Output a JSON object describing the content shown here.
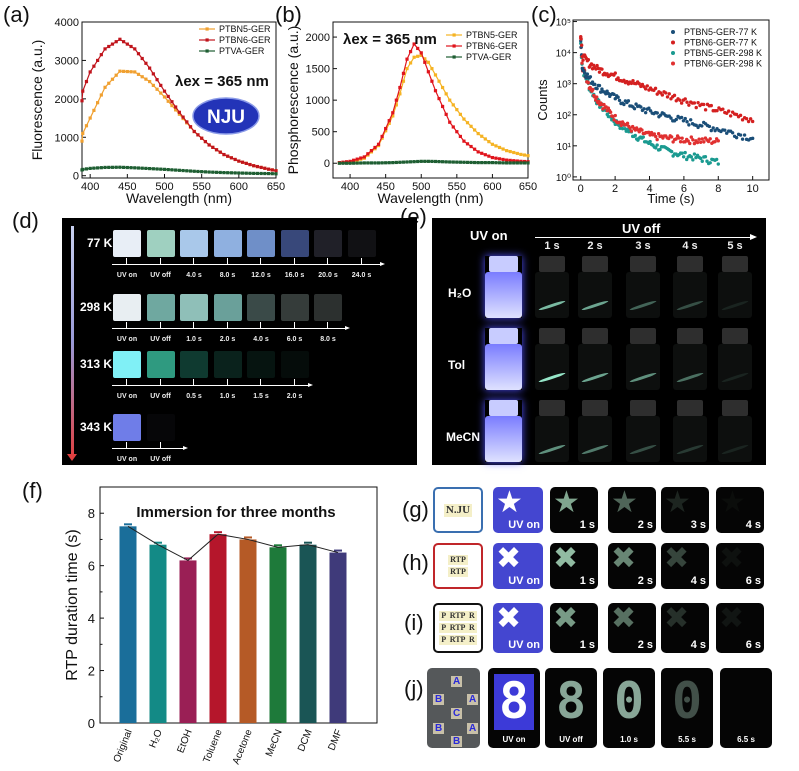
{
  "panel_labels": {
    "a": "(a)",
    "b": "(b)",
    "c": "(c)",
    "d": "(d)",
    "e": "(e)",
    "f": "(f)",
    "g": "(g)",
    "h": "(h)",
    "i": "(i)",
    "j": "(j)"
  },
  "chart_data": [
    {
      "id": "a",
      "type": "line",
      "title": "",
      "xlabel": "Wavelength (nm)",
      "ylabel": "Fluorescence (a.u.)",
      "xlim": [
        389,
        650
      ],
      "ylim": [
        -60,
        4000
      ],
      "xticks": [
        400,
        450,
        500,
        550,
        600,
        650
      ],
      "yticks": [
        0,
        1000,
        2000,
        3000,
        4000
      ],
      "annotation": "λex = 365 nm",
      "logo": "NJU",
      "legend_position": "top-right",
      "x": [
        385,
        400,
        420,
        440,
        460,
        480,
        500,
        520,
        540,
        560,
        580,
        600,
        620,
        640,
        650
      ],
      "series": [
        {
          "name": "PTBN5-GER",
          "color": "#f0a030",
          "values": [
            900,
            1500,
            2300,
            2720,
            2700,
            2450,
            2050,
            1600,
            1150,
            800,
            550,
            380,
            260,
            170,
            130
          ]
        },
        {
          "name": "PTBN6-GER",
          "color": "#c0141c",
          "values": [
            1950,
            2700,
            3300,
            3550,
            3300,
            2800,
            2200,
            1650,
            1150,
            800,
            550,
            380,
            260,
            170,
            130
          ]
        },
        {
          "name": "PTVA-GER",
          "color": "#1e5e32",
          "values": [
            150,
            190,
            215,
            220,
            205,
            185,
            165,
            140,
            115,
            95,
            80,
            70,
            60,
            55,
            50
          ]
        }
      ]
    },
    {
      "id": "b",
      "type": "line",
      "title": "",
      "xlabel": "Wavelength (nm)",
      "ylabel": "Phosphorescence (a.u.)",
      "xlim": [
        376,
        650
      ],
      "ylim": [
        -234,
        2239
      ],
      "xticks": [
        400,
        450,
        500,
        550,
        600,
        650
      ],
      "yticks": [
        0,
        500,
        1000,
        1500,
        2000
      ],
      "annotation": "λex = 365 nm",
      "legend_position": "top-right",
      "x": [
        385,
        400,
        420,
        440,
        460,
        470,
        480,
        490,
        500,
        510,
        520,
        540,
        560,
        580,
        600,
        620,
        640,
        650
      ],
      "series": [
        {
          "name": "PTBN5-GER",
          "color": "#f5b323",
          "values": [
            5,
            20,
            80,
            280,
            750,
            1100,
            1500,
            1680,
            1710,
            1600,
            1400,
            1000,
            700,
            470,
            300,
            200,
            140,
            120
          ]
        },
        {
          "name": "PTBN6-GER",
          "color": "#e0141c",
          "values": [
            10,
            30,
            100,
            300,
            800,
            1200,
            1650,
            1890,
            1750,
            1450,
            1150,
            650,
            350,
            180,
            90,
            50,
            30,
            25
          ]
        },
        {
          "name": "PTVA-GER",
          "color": "#1e5e32",
          "values": [
            0,
            0,
            5,
            5,
            10,
            15,
            20,
            25,
            30,
            30,
            28,
            20,
            15,
            10,
            10,
            5,
            5,
            5
          ]
        }
      ]
    },
    {
      "id": "c",
      "type": "scatter",
      "title": "",
      "xlabel": "Time (s)",
      "ylabel": "Counts",
      "yscale": "log",
      "xlim": [
        -0.45,
        10.95
      ],
      "ylim_log10": [
        -0.1,
        5.05
      ],
      "xticks": [
        0,
        2,
        4,
        6,
        8,
        10
      ],
      "yticks": [
        "10⁰",
        "10¹",
        "10²",
        "10³",
        "10⁴",
        "10⁵"
      ],
      "legend_position": "top-right",
      "series": [
        {
          "name": "PTBN5-GER-77 K",
          "color": "#1a4e78",
          "x": [
            0,
            0.1,
            0.5,
            1,
            2,
            3,
            4,
            5,
            6,
            7,
            8,
            9,
            10
          ],
          "values": [
            30000,
            3000,
            1500,
            800,
            350,
            200,
            130,
            90,
            65,
            48,
            35,
            25,
            18
          ]
        },
        {
          "name": "PTBN6-GER-77 K",
          "color": "#d42020",
          "x": [
            0,
            0.1,
            0.5,
            1,
            2,
            3,
            4,
            5,
            6,
            7,
            8,
            9,
            10
          ],
          "values": [
            30000,
            8000,
            4500,
            3000,
            1800,
            1100,
            700,
            450,
            300,
            200,
            140,
            100,
            70
          ]
        },
        {
          "name": "PTBN5-GER-298 K",
          "color": "#1a9a90",
          "x": [
            0,
            0.1,
            0.5,
            1,
            2,
            3,
            4,
            5,
            6,
            7,
            8
          ],
          "values": [
            20000,
            3000,
            800,
            250,
            60,
            25,
            12,
            7,
            5,
            4,
            3
          ]
        },
        {
          "name": "PTBN6-GER-298 K",
          "color": "#e03030",
          "x": [
            0,
            0.1,
            0.5,
            1,
            2,
            3,
            4,
            5,
            6,
            7,
            8
          ],
          "values": [
            25000,
            3500,
            900,
            300,
            80,
            35,
            22,
            18,
            16,
            15,
            14
          ]
        }
      ]
    },
    {
      "id": "f",
      "type": "bar",
      "title": "Immersion for three months",
      "xlabel": "",
      "ylabel": "RTP duration time (s)",
      "ylim": [
        0,
        9
      ],
      "yticks": [
        0,
        2,
        4,
        6,
        8
      ],
      "categories": [
        "Original",
        "H₂O",
        "EtOH",
        "Toluene",
        "Acetone",
        "MeCN",
        "DCM",
        "DMF"
      ],
      "values": [
        7.5,
        6.8,
        6.2,
        7.2,
        7.0,
        6.7,
        6.8,
        6.5
      ],
      "colors": [
        "#1a6e9a",
        "#138a86",
        "#9a1f55",
        "#b5162b",
        "#b55a26",
        "#1e7a3a",
        "#1a5555",
        "#3f3a7a"
      ]
    }
  ],
  "panel_d": {
    "rows": [
      {
        "temp": "77 K",
        "labels": [
          "UV on",
          "UV off",
          "4.0 s",
          "8.0 s",
          "12.0 s",
          "16.0 s",
          "20.0 s",
          "24.0 s"
        ],
        "colors": [
          "#e8eef6",
          "#9fd0c0",
          "#a9c8ea",
          "#8fb0e0",
          "#6f8fc8",
          "#38487a",
          "#202028",
          "#111114"
        ]
      },
      {
        "temp": "298 K",
        "labels": [
          "UV on",
          "UV off",
          "1.0 s",
          "2.0 s",
          "4.0 s",
          "6.0 s",
          "8.0 s"
        ],
        "colors": [
          "#e8eef2",
          "#6fa8a0",
          "#8fbfb8",
          "#6aa09a",
          "#3a4a48",
          "#353c3a",
          "#2c302f"
        ]
      },
      {
        "temp": "313 K",
        "labels": [
          "UV on",
          "UV off",
          "0.5 s",
          "1.0 s",
          "1.5 s",
          "2.0 s"
        ],
        "colors": [
          "#80f0f6",
          "#2f9a80",
          "#0f3a30",
          "#0a221c",
          "#061410",
          "#050c0a"
        ]
      },
      {
        "temp": "343 K",
        "labels": [
          "UV on",
          "UV off"
        ],
        "colors": [
          "#6f7de8",
          "#060608"
        ]
      }
    ]
  },
  "panel_e": {
    "uv_on": "UV on",
    "uv_off": "UV off",
    "times": [
      "1 s",
      "2 s",
      "3 s",
      "4 s",
      "5 s"
    ],
    "rows": [
      {
        "solvent": "H₂O",
        "glow": [
          0.8,
          0.7,
          0.4,
          0.3,
          0.1
        ]
      },
      {
        "solvent": "Tol",
        "glow": [
          1.0,
          0.7,
          0.6,
          0.45,
          0.1
        ]
      },
      {
        "solvent": "MeCN",
        "glow": [
          0.6,
          0.5,
          0.3,
          0.2,
          0.1
        ]
      }
    ]
  },
  "panel_gi": {
    "rows": [
      {
        "id": "g",
        "border": "#3a6fb0",
        "photo_text": [
          "N.JU"
        ],
        "shape": "★",
        "labels": [
          "UV on",
          "1 s",
          "2 s",
          "3 s",
          "4 s"
        ],
        "levels": [
          0.75,
          0.45,
          0.15,
          0.04
        ]
      },
      {
        "id": "h",
        "border": "#c0262a",
        "photo_text": [
          "RTP",
          "RTP"
        ],
        "shape": "✖",
        "labels": [
          "UV on",
          "1 s",
          "2 s",
          "4 s",
          "6 s"
        ],
        "levels": [
          0.85,
          0.6,
          0.3,
          0.06
        ]
      },
      {
        "id": "i",
        "border": "#111111",
        "photo_text": [
          "P  RTP  R",
          "P  RTP  R",
          "P  RTP  R"
        ],
        "shape": "✖",
        "labels": [
          "UV on",
          "1 s",
          "2 s",
          "4 s",
          "6 s"
        ],
        "levels": [
          0.7,
          0.5,
          0.2,
          0.08
        ]
      }
    ]
  },
  "panel_j": {
    "photo_letters": [
      "A",
      "B",
      "A",
      "C",
      "B",
      "A",
      "B"
    ],
    "labels": [
      "UV on",
      "UV off",
      "1.0 s",
      "5.5 s",
      "6.5 s"
    ],
    "digits": [
      "8",
      "8",
      "0",
      "0",
      ""
    ],
    "levels": [
      1,
      0.75,
      0.75,
      0.35,
      0.05
    ]
  }
}
